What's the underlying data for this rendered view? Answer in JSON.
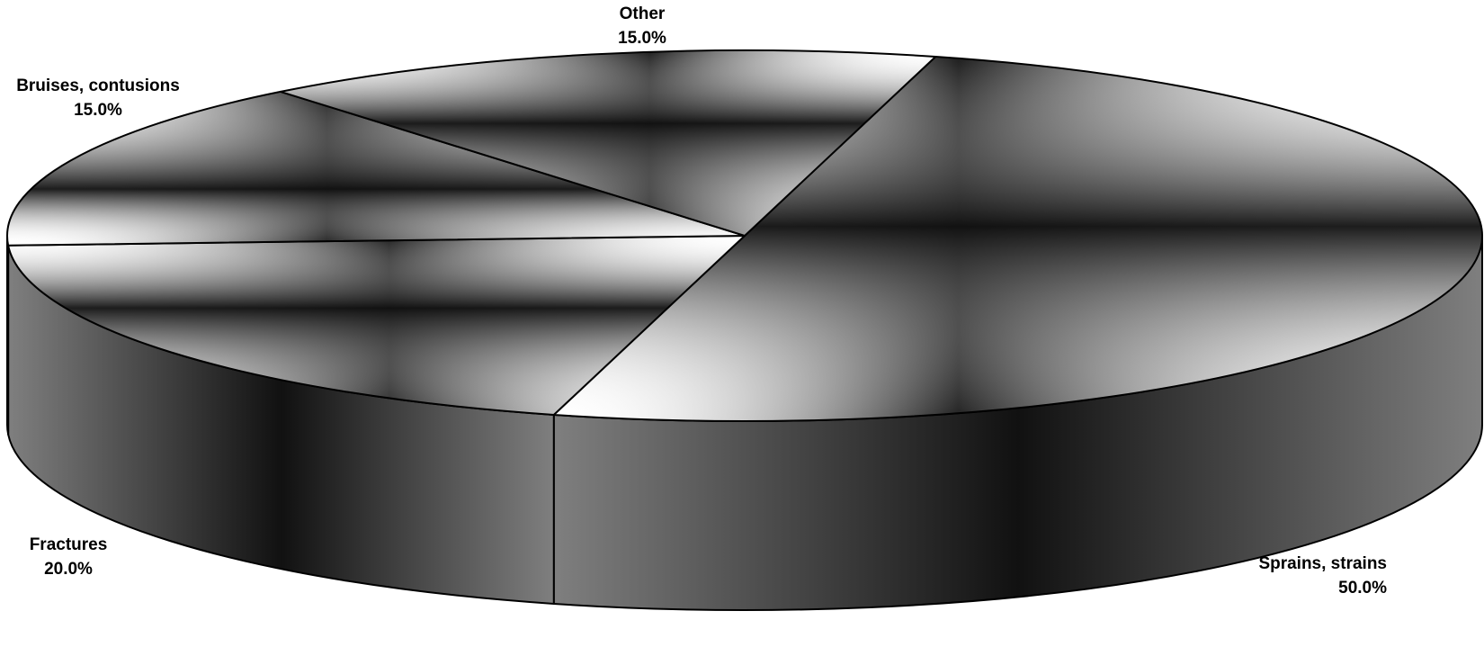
{
  "chart_data": {
    "type": "pie",
    "style": "3d",
    "categories": [
      "Sprains, strains",
      "Fractures",
      "Bruises, contusions",
      "Other"
    ],
    "values": [
      50.0,
      20.0,
      15.0,
      15.0
    ],
    "value_labels": [
      "50.0%",
      "20.0%",
      "15.0%",
      "15.0%"
    ],
    "title": "",
    "legend": "none",
    "colors": {
      "top_center": "#111111",
      "top_edge": "#ffffff",
      "side_dark": "#111111",
      "side_light": "#7f7f7f",
      "outline": "#000000"
    }
  }
}
